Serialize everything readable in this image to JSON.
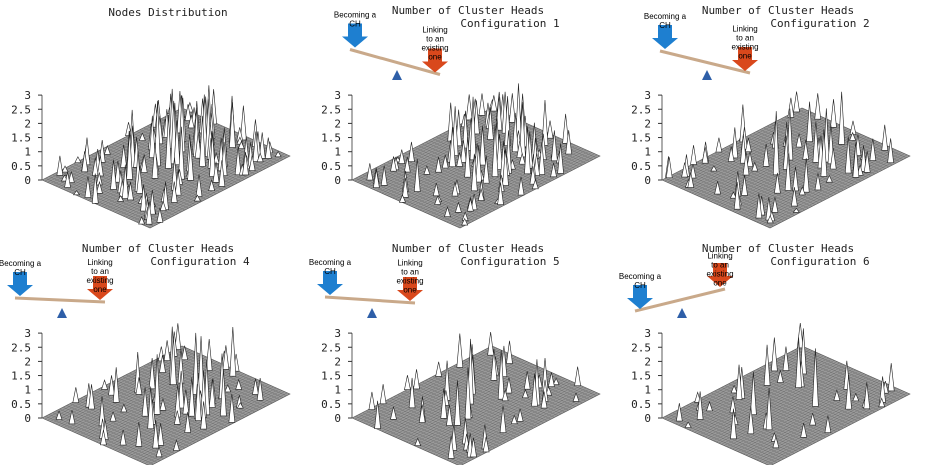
{
  "panels": [
    {
      "title": [
        "Nodes Distribution"
      ],
      "zticks": [
        0,
        0.5,
        1,
        1.5,
        2,
        2.5,
        3
      ]
    },
    {
      "title": [
        "Number of Cluster Heads",
        "Configuration 1"
      ],
      "balance": {
        "left": "Becoming a CH",
        "right": "Linking to an existing one"
      },
      "zticks": [
        0,
        0.5,
        1,
        1.5,
        2,
        2.5,
        3
      ]
    },
    {
      "title": [
        "Number of Cluster Heads",
        "Configuration 2"
      ],
      "balance": {
        "left": "Becoming a CH",
        "right": "Linking to an existing one"
      },
      "zticks": [
        0,
        0.5,
        1,
        1.5,
        2,
        2.5,
        3
      ]
    },
    {
      "title": [
        "Number of Cluster Heads",
        "Configuration 4"
      ],
      "balance": {
        "left": "Becoming a CH",
        "right": "Linking to an existing one"
      },
      "zticks": [
        0,
        0.5,
        1,
        1.5,
        2,
        2.5,
        3
      ]
    },
    {
      "title": [
        "Number of Cluster Heads",
        "Configuration 5"
      ],
      "balance": {
        "left": "Becoming a CH",
        "right": "Linking to an existing one"
      },
      "zticks": [
        0,
        0.5,
        1,
        1.5,
        2,
        2.5,
        3
      ]
    },
    {
      "title": [
        "Number of Cluster Heads",
        "Configuration 6"
      ],
      "balance": {
        "left": "Becoming a CH",
        "right": "Linking to an existing one"
      },
      "zticks": [
        0,
        0.5,
        1,
        1.5,
        2,
        2.5,
        3
      ]
    }
  ]
}
